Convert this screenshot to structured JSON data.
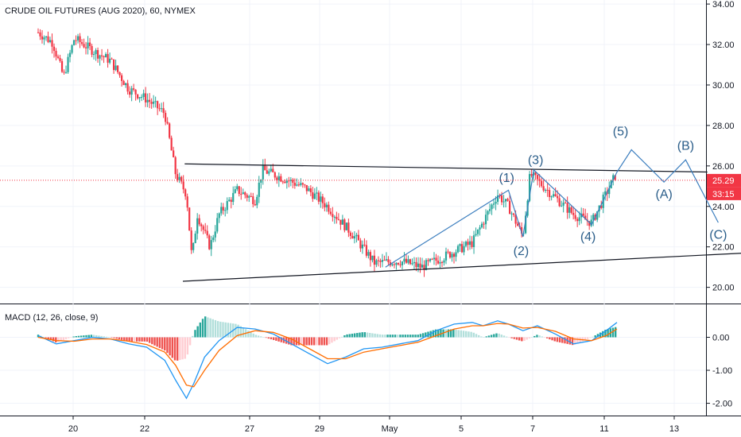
{
  "header": {
    "title": "CRUDE OIL FUTURES (AUG 2020), 60, NYMEX"
  },
  "price_badge": {
    "value": "25.29",
    "countdown": "33:15",
    "color": "#f23645"
  },
  "colors": {
    "up": "#26a69a",
    "down": "#f23645",
    "line": "#131722",
    "wave": "#3d7fbf",
    "wave_label": "#2b5e8a",
    "macd": "#2196f3",
    "signal": "#ff6d00",
    "grid": "#f0f3fa",
    "axis_text": "#131722"
  },
  "chart_data": [
    {
      "type": "candlestick",
      "title": "CRUDE OIL FUTURES (AUG 2020), 60, NYMEX",
      "y_ticks": [
        "34.00",
        "32.00",
        "30.00",
        "28.00",
        "26.00",
        "24.00",
        "22.00",
        "20.00"
      ],
      "ylim": [
        19.2,
        34.2
      ],
      "x_ticks": [
        "20",
        "22",
        "27",
        "29",
        "May",
        "5",
        "7",
        "11",
        "13"
      ],
      "current_price": 25.29,
      "anchors": [
        {
          "d": 0,
          "p": 32.6
        },
        {
          "d": 0.4,
          "p": 32.1
        },
        {
          "d": 0.7,
          "p": 30.4
        },
        {
          "d": 1.0,
          "p": 32.3
        },
        {
          "d": 1.6,
          "p": 31.6
        },
        {
          "d": 2.0,
          "p": 31.2
        },
        {
          "d": 2.5,
          "p": 29.8
        },
        {
          "d": 3.0,
          "p": 29.3
        },
        {
          "d": 3.5,
          "p": 28.6
        },
        {
          "d": 3.8,
          "p": 25.6
        },
        {
          "d": 4.1,
          "p": 24.6
        },
        {
          "d": 4.25,
          "p": 21.4
        },
        {
          "d": 4.4,
          "p": 23.6
        },
        {
          "d": 4.75,
          "p": 22.0
        },
        {
          "d": 5.0,
          "p": 23.6
        },
        {
          "d": 5.5,
          "p": 24.8
        },
        {
          "d": 6.0,
          "p": 24.3
        },
        {
          "d": 6.2,
          "p": 25.8
        },
        {
          "d": 6.9,
          "p": 25.3
        },
        {
          "d": 7.4,
          "p": 24.9
        },
        {
          "d": 8.0,
          "p": 24.0
        },
        {
          "d": 8.7,
          "p": 22.6
        },
        {
          "d": 9.3,
          "p": 21.2
        },
        {
          "d": 10.0,
          "p": 21.3
        },
        {
          "d": 10.6,
          "p": 21.0
        },
        {
          "d": 11.2,
          "p": 21.5
        },
        {
          "d": 12.0,
          "p": 22.2
        },
        {
          "d": 12.7,
          "p": 24.6
        },
        {
          "d": 13.0,
          "p": 24.0
        },
        {
          "d": 13.4,
          "p": 22.5
        },
        {
          "d": 13.6,
          "p": 25.6
        },
        {
          "d": 14.2,
          "p": 24.6
        },
        {
          "d": 14.8,
          "p": 23.6
        },
        {
          "d": 15.3,
          "p": 23.2
        },
        {
          "d": 16.0,
          "p": 25.7
        }
      ],
      "trendlines": [
        {
          "from": [
            4.05,
            26.1
          ],
          "to": [
            18.5,
            25.7
          ]
        },
        {
          "from": [
            4.0,
            20.3
          ],
          "to": [
            19.6,
            21.7
          ]
        }
      ],
      "wave_path": [
        [
          9.6,
          21.0
        ],
        [
          13.0,
          24.8
        ],
        [
          13.4,
          22.5
        ],
        [
          13.7,
          25.8
        ],
        [
          15.3,
          23.1
        ],
        [
          16.0,
          25.7
        ],
        [
          16.4,
          26.8
        ],
        [
          17.3,
          25.2
        ],
        [
          17.9,
          26.3
        ],
        [
          18.8,
          23.2
        ]
      ],
      "wave_labels": [
        {
          "text": "(1)",
          "d": 12.95,
          "p": 25.2
        },
        {
          "text": "(2)",
          "d": 13.35,
          "p": 21.6
        },
        {
          "text": "(3)",
          "d": 13.75,
          "p": 26.1
        },
        {
          "text": "(4)",
          "d": 15.2,
          "p": 22.3
        },
        {
          "text": "(5)",
          "d": 16.1,
          "p": 27.5
        },
        {
          "text": "(A)",
          "d": 17.3,
          "p": 24.4
        },
        {
          "text": "(B)",
          "d": 17.9,
          "p": 26.8
        },
        {
          "text": "(C)",
          "d": 18.8,
          "p": 22.4
        }
      ]
    },
    {
      "type": "line",
      "title": "MACD (12, 26, close, 9)",
      "y_ticks": [
        "0.00",
        "-1.00",
        "-2.00"
      ],
      "ylim": [
        -2.3,
        1.0
      ],
      "series": [
        {
          "name": "MACD",
          "points": [
            [
              0,
              0.05
            ],
            [
              0.5,
              -0.2
            ],
            [
              1.0,
              -0.1
            ],
            [
              1.5,
              0.0
            ],
            [
              2.0,
              -0.05
            ],
            [
              2.5,
              -0.2
            ],
            [
              3.0,
              -0.3
            ],
            [
              3.5,
              -0.7
            ],
            [
              3.8,
              -1.3
            ],
            [
              4.1,
              -1.85
            ],
            [
              4.3,
              -1.4
            ],
            [
              4.6,
              -0.6
            ],
            [
              5.0,
              -0.1
            ],
            [
              5.5,
              0.3
            ],
            [
              6.0,
              0.25
            ],
            [
              6.5,
              0.1
            ],
            [
              7.0,
              -0.2
            ],
            [
              7.5,
              -0.5
            ],
            [
              8.0,
              -0.8
            ],
            [
              8.5,
              -0.6
            ],
            [
              9.0,
              -0.35
            ],
            [
              9.5,
              -0.3
            ],
            [
              10.0,
              -0.2
            ],
            [
              10.5,
              -0.1
            ],
            [
              11.0,
              0.2
            ],
            [
              11.5,
              0.4
            ],
            [
              12.0,
              0.45
            ],
            [
              12.3,
              0.35
            ],
            [
              12.7,
              0.5
            ],
            [
              13.0,
              0.4
            ],
            [
              13.4,
              0.2
            ],
            [
              13.8,
              0.35
            ],
            [
              14.3,
              0.1
            ],
            [
              14.8,
              -0.2
            ],
            [
              15.3,
              -0.1
            ],
            [
              15.7,
              0.2
            ],
            [
              16.0,
              0.45
            ]
          ]
        },
        {
          "name": "Signal",
          "points": [
            [
              0,
              0.0
            ],
            [
              0.5,
              -0.1
            ],
            [
              1.0,
              -0.12
            ],
            [
              1.5,
              -0.05
            ],
            [
              2.0,
              -0.05
            ],
            [
              2.5,
              -0.12
            ],
            [
              3.0,
              -0.22
            ],
            [
              3.5,
              -0.45
            ],
            [
              3.8,
              -0.85
            ],
            [
              4.1,
              -1.45
            ],
            [
              4.3,
              -1.5
            ],
            [
              4.6,
              -1.0
            ],
            [
              5.0,
              -0.4
            ],
            [
              5.5,
              0.05
            ],
            [
              6.0,
              0.2
            ],
            [
              6.5,
              0.15
            ],
            [
              7.0,
              -0.05
            ],
            [
              7.5,
              -0.35
            ],
            [
              8.0,
              -0.65
            ],
            [
              8.5,
              -0.65
            ],
            [
              9.0,
              -0.45
            ],
            [
              9.5,
              -0.35
            ],
            [
              10.0,
              -0.25
            ],
            [
              10.5,
              -0.15
            ],
            [
              11.0,
              0.05
            ],
            [
              11.5,
              0.25
            ],
            [
              12.0,
              0.35
            ],
            [
              12.3,
              0.35
            ],
            [
              12.7,
              0.42
            ],
            [
              13.0,
              0.4
            ],
            [
              13.4,
              0.28
            ],
            [
              13.8,
              0.3
            ],
            [
              14.3,
              0.18
            ],
            [
              14.8,
              -0.05
            ],
            [
              15.3,
              -0.1
            ],
            [
              15.7,
              0.05
            ],
            [
              16.0,
              0.25
            ]
          ]
        }
      ]
    }
  ]
}
